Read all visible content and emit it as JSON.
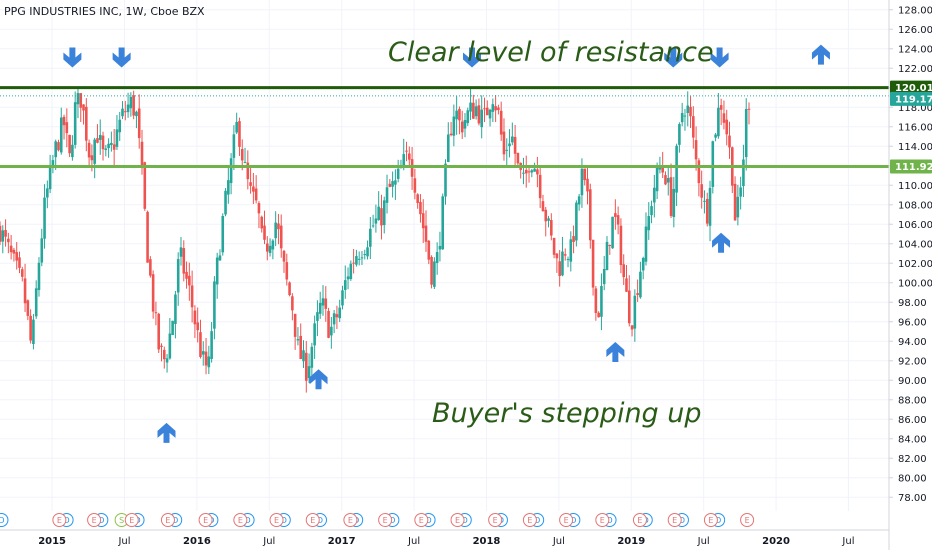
{
  "header": {
    "title": "PPG INDUSTRIES INC, 1W, Cboe BZX"
  },
  "colors": {
    "up": "#26a69a",
    "down": "#ef5350",
    "resistance": "#1e5c0a",
    "support": "#6fb34a",
    "arrow": "#3b82db",
    "annotation": "#2a5c17",
    "current_price": "#26a69a"
  },
  "annotations": {
    "resistance_text": "Clear level of resistance",
    "buyers_text": "Buyer's stepping up"
  },
  "levels": {
    "resistance": {
      "value": 120.01,
      "label": "120.01"
    },
    "support": {
      "value": 111.92,
      "label": "111.92"
    },
    "current": {
      "value": 119.17,
      "label": "119.17"
    }
  },
  "chart_data": {
    "type": "candlestick",
    "title": "PPG INDUSTRIES INC, 1W, Cboe BZX",
    "ylim": [
      77,
      129
    ],
    "yticks": [
      78,
      80,
      82,
      84,
      86,
      88,
      90,
      92,
      94,
      96,
      98,
      100,
      102,
      104,
      106,
      108,
      110,
      112,
      114,
      116,
      118,
      120,
      122,
      124,
      126,
      128
    ],
    "ytick_labels": [
      "78.00",
      "80.00",
      "82.00",
      "84.00",
      "86.00",
      "88.00",
      "90.00",
      "92.00",
      "94.00",
      "96.00",
      "98.00",
      "100.00",
      "102.00",
      "104.00",
      "106.00",
      "108.00",
      "110.00",
      "112.00",
      "114.00",
      "116.00",
      "118.00",
      "120.00",
      "122.00",
      "124.00",
      "126.00",
      "128.00"
    ],
    "xlim": [
      2014.64,
      2020.78
    ],
    "xticks": [
      {
        "t": 2015.0,
        "label": "2015",
        "major": true
      },
      {
        "t": 2015.5,
        "label": "Jul",
        "major": false
      },
      {
        "t": 2016.0,
        "label": "2016",
        "major": true
      },
      {
        "t": 2016.5,
        "label": "Jul",
        "major": false
      },
      {
        "t": 2017.0,
        "label": "2017",
        "major": true
      },
      {
        "t": 2017.5,
        "label": "Jul",
        "major": false
      },
      {
        "t": 2018.0,
        "label": "2018",
        "major": true
      },
      {
        "t": 2018.5,
        "label": "Jul",
        "major": false
      },
      {
        "t": 2019.0,
        "label": "2019",
        "major": true
      },
      {
        "t": 2019.5,
        "label": "Jul",
        "major": false
      },
      {
        "t": 2020.0,
        "label": "2020",
        "major": true
      },
      {
        "t": 2020.5,
        "label": "Jul",
        "major": false
      }
    ],
    "close_path": [
      [
        2014.64,
        105.5
      ],
      [
        2014.72,
        102.5
      ],
      [
        2014.8,
        99.5
      ],
      [
        2014.86,
        93.0
      ],
      [
        2014.9,
        101.0
      ],
      [
        2014.95,
        108.0
      ],
      [
        2015.02,
        113.5
      ],
      [
        2015.08,
        116.5
      ],
      [
        2015.12,
        112.5
      ],
      [
        2015.16,
        118.0
      ],
      [
        2015.2,
        119.0
      ],
      [
        2015.26,
        113.0
      ],
      [
        2015.31,
        115.5
      ],
      [
        2015.36,
        112.5
      ],
      [
        2015.42,
        114.0
      ],
      [
        2015.48,
        117.0
      ],
      [
        2015.54,
        118.5
      ],
      [
        2015.58,
        117.5
      ],
      [
        2015.62,
        111.0
      ],
      [
        2015.66,
        103.0
      ],
      [
        2015.7,
        97.5
      ],
      [
        2015.74,
        93.0
      ],
      [
        2015.78,
        92.0
      ],
      [
        2015.83,
        96.0
      ],
      [
        2015.88,
        103.0
      ],
      [
        2015.95,
        99.0
      ],
      [
        2016.0,
        95.0
      ],
      [
        2016.04,
        92.0
      ],
      [
        2016.08,
        91.0
      ],
      [
        2016.12,
        99.0
      ],
      [
        2016.17,
        105.5
      ],
      [
        2016.21,
        109.5
      ],
      [
        2016.25,
        113.5
      ],
      [
        2016.28,
        116.5
      ],
      [
        2016.32,
        112.5
      ],
      [
        2016.36,
        109.5
      ],
      [
        2016.42,
        107.5
      ],
      [
        2016.46,
        103.0
      ],
      [
        2016.5,
        104.5
      ],
      [
        2016.55,
        106.5
      ],
      [
        2016.58,
        103.0
      ],
      [
        2016.62,
        100.0
      ],
      [
        2016.66,
        97.5
      ],
      [
        2016.7,
        93.0
      ],
      [
        2016.76,
        91.0
      ],
      [
        2016.8,
        94.0
      ],
      [
        2016.86,
        98.0
      ],
      [
        2016.92,
        95.0
      ],
      [
        2016.98,
        97.0
      ],
      [
        2017.04,
        101.0
      ],
      [
        2017.1,
        103.0
      ],
      [
        2017.16,
        104.0
      ],
      [
        2017.22,
        106.0
      ],
      [
        2017.28,
        107.0
      ],
      [
        2017.32,
        109.5
      ],
      [
        2017.37,
        110.0
      ],
      [
        2017.42,
        112.0
      ],
      [
        2017.47,
        113.5
      ],
      [
        2017.52,
        109.0
      ],
      [
        2017.58,
        104.5
      ],
      [
        2017.62,
        101.0
      ],
      [
        2017.66,
        102.5
      ],
      [
        2017.7,
        108.0
      ],
      [
        2017.74,
        115.0
      ],
      [
        2017.78,
        118.0
      ],
      [
        2017.82,
        116.0
      ],
      [
        2017.88,
        117.5
      ],
      [
        2017.93,
        118.0
      ],
      [
        2017.98,
        116.5
      ],
      [
        2018.04,
        119.5
      ],
      [
        2018.08,
        117.5
      ],
      [
        2018.12,
        113.0
      ],
      [
        2018.17,
        115.5
      ],
      [
        2018.22,
        111.5
      ],
      [
        2018.26,
        110.0
      ],
      [
        2018.3,
        113.0
      ],
      [
        2018.35,
        111.5
      ],
      [
        2018.4,
        107.5
      ],
      [
        2018.46,
        103.5
      ],
      [
        2018.5,
        101.5
      ],
      [
        2018.54,
        103.5
      ],
      [
        2018.58,
        103.0
      ],
      [
        2018.62,
        107.0
      ],
      [
        2018.66,
        111.0
      ],
      [
        2018.7,
        108.0
      ],
      [
        2018.73,
        102.0
      ],
      [
        2018.76,
        96.0
      ],
      [
        2018.8,
        99.5
      ],
      [
        2018.84,
        104.0
      ],
      [
        2018.88,
        107.0
      ],
      [
        2018.92,
        104.0
      ],
      [
        2018.96,
        99.0
      ],
      [
        2019.0,
        96.0
      ],
      [
        2019.05,
        100.5
      ],
      [
        2019.1,
        104.5
      ],
      [
        2019.15,
        109.5
      ],
      [
        2019.2,
        112.0
      ],
      [
        2019.24,
        111.0
      ],
      [
        2019.28,
        107.5
      ],
      [
        2019.32,
        114.0
      ],
      [
        2019.36,
        118.5
      ],
      [
        2019.4,
        117.5
      ],
      [
        2019.44,
        113.0
      ],
      [
        2019.48,
        110.0
      ],
      [
        2019.52,
        106.5
      ],
      [
        2019.56,
        114.0
      ],
      [
        2019.6,
        117.5
      ],
      [
        2019.62,
        118.5
      ],
      [
        2019.66,
        115.5
      ],
      [
        2019.7,
        111.0
      ],
      [
        2019.72,
        106.0
      ],
      [
        2019.76,
        110.0
      ],
      [
        2019.8,
        118.5
      ],
      [
        2019.83,
        119.17
      ]
    ],
    "resistance_level": 120.01,
    "support_level": 111.92,
    "last_price": 119.17,
    "earnings_markers": [
      2015.05,
      2015.29,
      2015.55,
      2015.8,
      2016.06,
      2016.3,
      2016.55,
      2016.8,
      2017.06,
      2017.3,
      2017.55,
      2017.8,
      2018.06,
      2018.3,
      2018.55,
      2018.8,
      2019.06,
      2019.3,
      2019.55,
      2019.8
    ],
    "earnings_label": "E",
    "dividend_markers": [
      2014.65,
      2015.1,
      2015.34,
      2015.59,
      2015.85,
      2016.1,
      2016.35,
      2016.6,
      2016.85,
      2017.1,
      2017.35,
      2017.6,
      2017.85,
      2018.1,
      2018.35,
      2018.6,
      2018.85,
      2019.1,
      2019.35,
      2019.6
    ],
    "dividend_label": "D",
    "split_markers": [
      2015.48
    ],
    "split_label": "S",
    "down_arrows": [
      [
        2015.14,
        123.2
      ],
      [
        2015.48,
        123.2
      ],
      [
        2017.9,
        123.2
      ],
      [
        2019.29,
        123.2
      ],
      [
        2019.61,
        123.2
      ]
    ],
    "up_arrows": [
      [
        2015.79,
        84.5
      ],
      [
        2016.84,
        90.0
      ],
      [
        2018.89,
        92.8
      ],
      [
        2019.62,
        104.0
      ],
      [
        2020.31,
        123.3
      ]
    ]
  }
}
